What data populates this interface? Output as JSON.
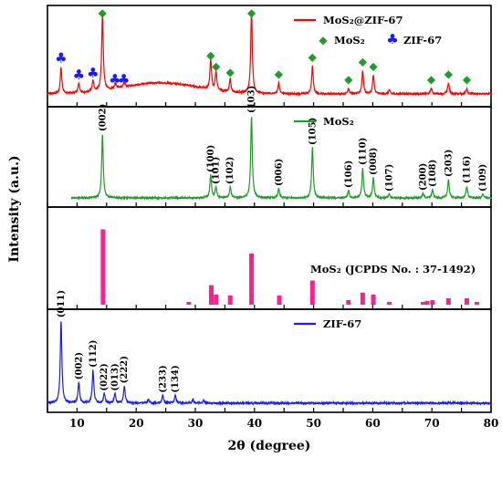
{
  "chart_data": {
    "type": "line",
    "xlabel": "2θ (degree)",
    "ylabel": "Intensity (a.u.)",
    "xlim": [
      5,
      80
    ],
    "xticks": [
      5,
      10,
      15,
      20,
      25,
      30,
      35,
      40,
      45,
      50,
      55,
      60,
      65,
      70,
      75,
      80
    ],
    "panels": [
      {
        "id": "mos2_zif67",
        "color": "#ff0000",
        "legend_label": "MoS₂@ZIF-67",
        "marker_legend": [
          {
            "symbol": "◆",
            "label": "MoS₂",
            "color": "#1e9e28"
          },
          {
            "symbol": "♣",
            "label": "ZIF-67",
            "color": "#1a1aff"
          }
        ],
        "baseline": 0.08,
        "broad_hump": {
          "center": 24,
          "width": 9,
          "height": 0.12
        },
        "peaks": [
          {
            "x": 7.3,
            "h": 0.28
          },
          {
            "x": 10.3,
            "h": 0.1
          },
          {
            "x": 12.7,
            "h": 0.12
          },
          {
            "x": 14.3,
            "h": 0.82
          },
          {
            "x": 16.5,
            "h": 0.05
          },
          {
            "x": 18.0,
            "h": 0.05
          },
          {
            "x": 32.6,
            "h": 0.32
          },
          {
            "x": 33.5,
            "h": 0.2
          },
          {
            "x": 35.9,
            "h": 0.14
          },
          {
            "x": 39.5,
            "h": 0.9
          },
          {
            "x": 44.1,
            "h": 0.12
          },
          {
            "x": 49.8,
            "h": 0.3
          },
          {
            "x": 55.9,
            "h": 0.06
          },
          {
            "x": 58.3,
            "h": 0.25
          },
          {
            "x": 60.1,
            "h": 0.2
          },
          {
            "x": 62.8,
            "h": 0.04
          },
          {
            "x": 69.9,
            "h": 0.06
          },
          {
            "x": 72.8,
            "h": 0.12
          },
          {
            "x": 75.9,
            "h": 0.06
          }
        ],
        "markers": [
          {
            "x": 7.3,
            "symbol": "♣",
            "color": "#1a1aff"
          },
          {
            "x": 10.3,
            "symbol": "♣",
            "color": "#1a1aff"
          },
          {
            "x": 12.7,
            "symbol": "♣",
            "color": "#1a1aff"
          },
          {
            "x": 16.4,
            "symbol": "♣",
            "color": "#1a1aff"
          },
          {
            "x": 17.9,
            "symbol": "♣",
            "color": "#1a1aff"
          },
          {
            "x": 14.3,
            "symbol": "◆",
            "color": "#1e9e28"
          },
          {
            "x": 32.6,
            "symbol": "◆",
            "color": "#1e9e28"
          },
          {
            "x": 33.5,
            "symbol": "◆",
            "color": "#1e9e28"
          },
          {
            "x": 35.9,
            "symbol": "◆",
            "color": "#1e9e28"
          },
          {
            "x": 39.5,
            "symbol": "◆",
            "color": "#1e9e28"
          },
          {
            "x": 44.1,
            "symbol": "◆",
            "color": "#1e9e28"
          },
          {
            "x": 49.8,
            "symbol": "◆",
            "color": "#1e9e28"
          },
          {
            "x": 55.9,
            "symbol": "◆",
            "color": "#1e9e28"
          },
          {
            "x": 58.3,
            "symbol": "◆",
            "color": "#1e9e28"
          },
          {
            "x": 60.1,
            "symbol": "◆",
            "color": "#1e9e28"
          },
          {
            "x": 69.9,
            "symbol": "◆",
            "color": "#1e9e28"
          },
          {
            "x": 72.8,
            "symbol": "◆",
            "color": "#1e9e28"
          },
          {
            "x": 75.9,
            "symbol": "◆",
            "color": "#1e9e28"
          }
        ]
      },
      {
        "id": "mos2",
        "color": "#1e9e28",
        "legend_label": "MoS₂",
        "baseline": 0.04,
        "trace_xlim": [
          9,
          80
        ],
        "peaks": [
          {
            "x": 14.3,
            "h": 0.7,
            "label": "(002)"
          },
          {
            "x": 32.6,
            "h": 0.25,
            "label": "(100)"
          },
          {
            "x": 33.5,
            "h": 0.12,
            "label": "(101)"
          },
          {
            "x": 35.9,
            "h": 0.12,
            "label": "(102)"
          },
          {
            "x": 39.5,
            "h": 0.9,
            "label": "(103)"
          },
          {
            "x": 44.1,
            "h": 0.1,
            "label": "(006)"
          },
          {
            "x": 49.8,
            "h": 0.55,
            "label": "(105)"
          },
          {
            "x": 55.9,
            "h": 0.08,
            "label": "(106)"
          },
          {
            "x": 58.3,
            "h": 0.33,
            "label": "(110)"
          },
          {
            "x": 60.1,
            "h": 0.22,
            "label": "(008)"
          },
          {
            "x": 62.8,
            "h": 0.04,
            "label": "(107)"
          },
          {
            "x": 68.5,
            "h": 0.05,
            "label": "(200)"
          },
          {
            "x": 70.1,
            "h": 0.09,
            "label": "(108)"
          },
          {
            "x": 72.8,
            "h": 0.2,
            "label": "(203)"
          },
          {
            "x": 75.9,
            "h": 0.13,
            "label": "(116)"
          },
          {
            "x": 78.6,
            "h": 0.04,
            "label": "(109)"
          }
        ]
      },
      {
        "id": "jcpds",
        "color": "#ff1f8e",
        "legend_label": "MoS₂ (JCPDS No. : 37-1492)",
        "type": "stick",
        "sticks": [
          {
            "x": 14.4,
            "h": 0.8
          },
          {
            "x": 28.9,
            "h": 0.02
          },
          {
            "x": 32.7,
            "h": 0.2
          },
          {
            "x": 33.5,
            "h": 0.1
          },
          {
            "x": 35.9,
            "h": 0.09
          },
          {
            "x": 39.5,
            "h": 0.54
          },
          {
            "x": 44.2,
            "h": 0.09
          },
          {
            "x": 49.8,
            "h": 0.25
          },
          {
            "x": 55.9,
            "h": 0.04
          },
          {
            "x": 58.3,
            "h": 0.12
          },
          {
            "x": 60.1,
            "h": 0.1
          },
          {
            "x": 62.8,
            "h": 0.02
          },
          {
            "x": 68.5,
            "h": 0.02
          },
          {
            "x": 69.2,
            "h": 0.03
          },
          {
            "x": 70.1,
            "h": 0.04
          },
          {
            "x": 72.8,
            "h": 0.06
          },
          {
            "x": 75.9,
            "h": 0.06
          },
          {
            "x": 77.6,
            "h": 0.02
          }
        ]
      },
      {
        "id": "zif67",
        "color": "#1a1aff",
        "legend_label": "ZIF-67",
        "baseline": 0.04,
        "trace_xlim": [
          5,
          80
        ],
        "peaks": [
          {
            "x": 7.3,
            "h": 0.88,
            "label": "(011)"
          },
          {
            "x": 10.3,
            "h": 0.22,
            "label": "(002)"
          },
          {
            "x": 12.7,
            "h": 0.35,
            "label": "(112)"
          },
          {
            "x": 14.6,
            "h": 0.1,
            "label": "(022)"
          },
          {
            "x": 16.4,
            "h": 0.1,
            "label": "(013)"
          },
          {
            "x": 18.0,
            "h": 0.18,
            "label": "(222)"
          },
          {
            "x": 22.1,
            "h": 0.04
          },
          {
            "x": 24.5,
            "h": 0.08,
            "label": "(233)"
          },
          {
            "x": 26.6,
            "h": 0.08,
            "label": "(134)"
          },
          {
            "x": 29.6,
            "h": 0.04
          },
          {
            "x": 31.4,
            "h": 0.03
          }
        ]
      }
    ]
  }
}
